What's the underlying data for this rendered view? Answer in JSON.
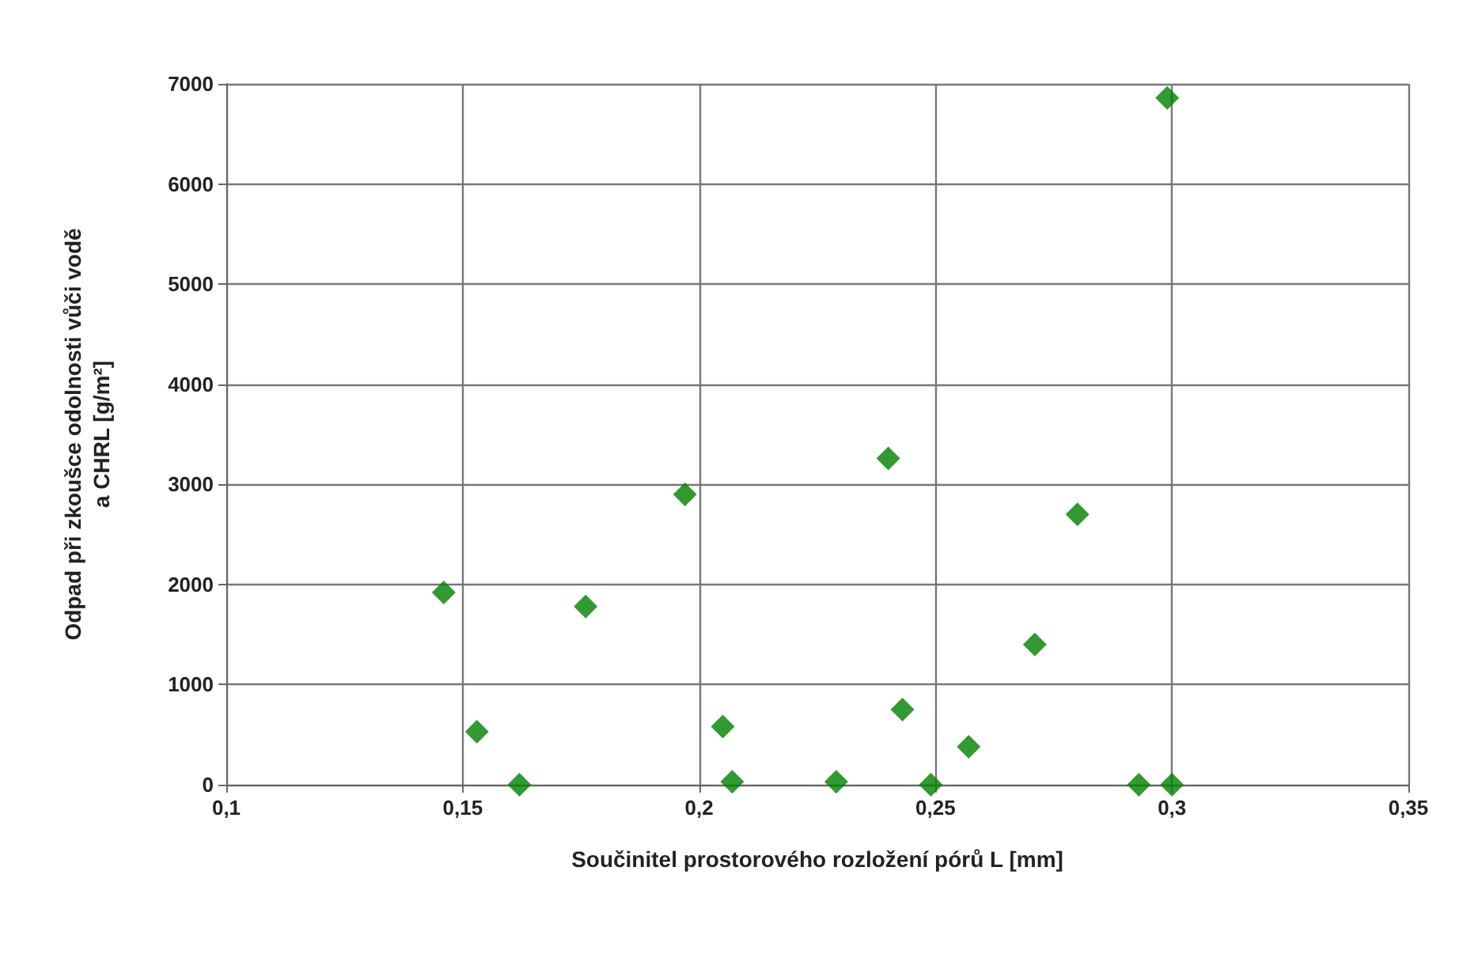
{
  "chart_data": {
    "type": "scatter",
    "xlabel": "Součinitel prostorového rozložení pórů L [mm]",
    "ylabel": "Odpad při zkoušce odolnosti vůči vodě\na CHRL [g/m²]",
    "x": [
      0.146,
      0.153,
      0.162,
      0.176,
      0.197,
      0.205,
      0.207,
      0.229,
      0.24,
      0.243,
      0.249,
      0.257,
      0.271,
      0.28,
      0.293,
      0.3,
      0.299
    ],
    "series": [
      {
        "color": "#008000",
        "values": [
          1920,
          530,
          0,
          1780,
          2900,
          580,
          30,
          30,
          3260,
          750,
          0,
          380,
          1400,
          2700,
          0,
          0,
          6860
        ]
      }
    ],
    "xlim": [
      0.1,
      0.35
    ],
    "xticks": [
      {
        "value": 0.1,
        "label": "0,1"
      },
      {
        "value": 0.15,
        "label": "0,15"
      },
      {
        "value": 0.2,
        "label": "0,2"
      },
      {
        "value": 0.25,
        "label": "0,25"
      },
      {
        "value": 0.3,
        "label": "0,3"
      },
      {
        "value": 0.35,
        "label": "0,35"
      }
    ],
    "ylim": [
      0,
      7000
    ],
    "yticks": [
      0,
      1000,
      2000,
      3000,
      4000,
      5000,
      6000,
      7000
    ],
    "grid": true,
    "marker": "diamond"
  }
}
